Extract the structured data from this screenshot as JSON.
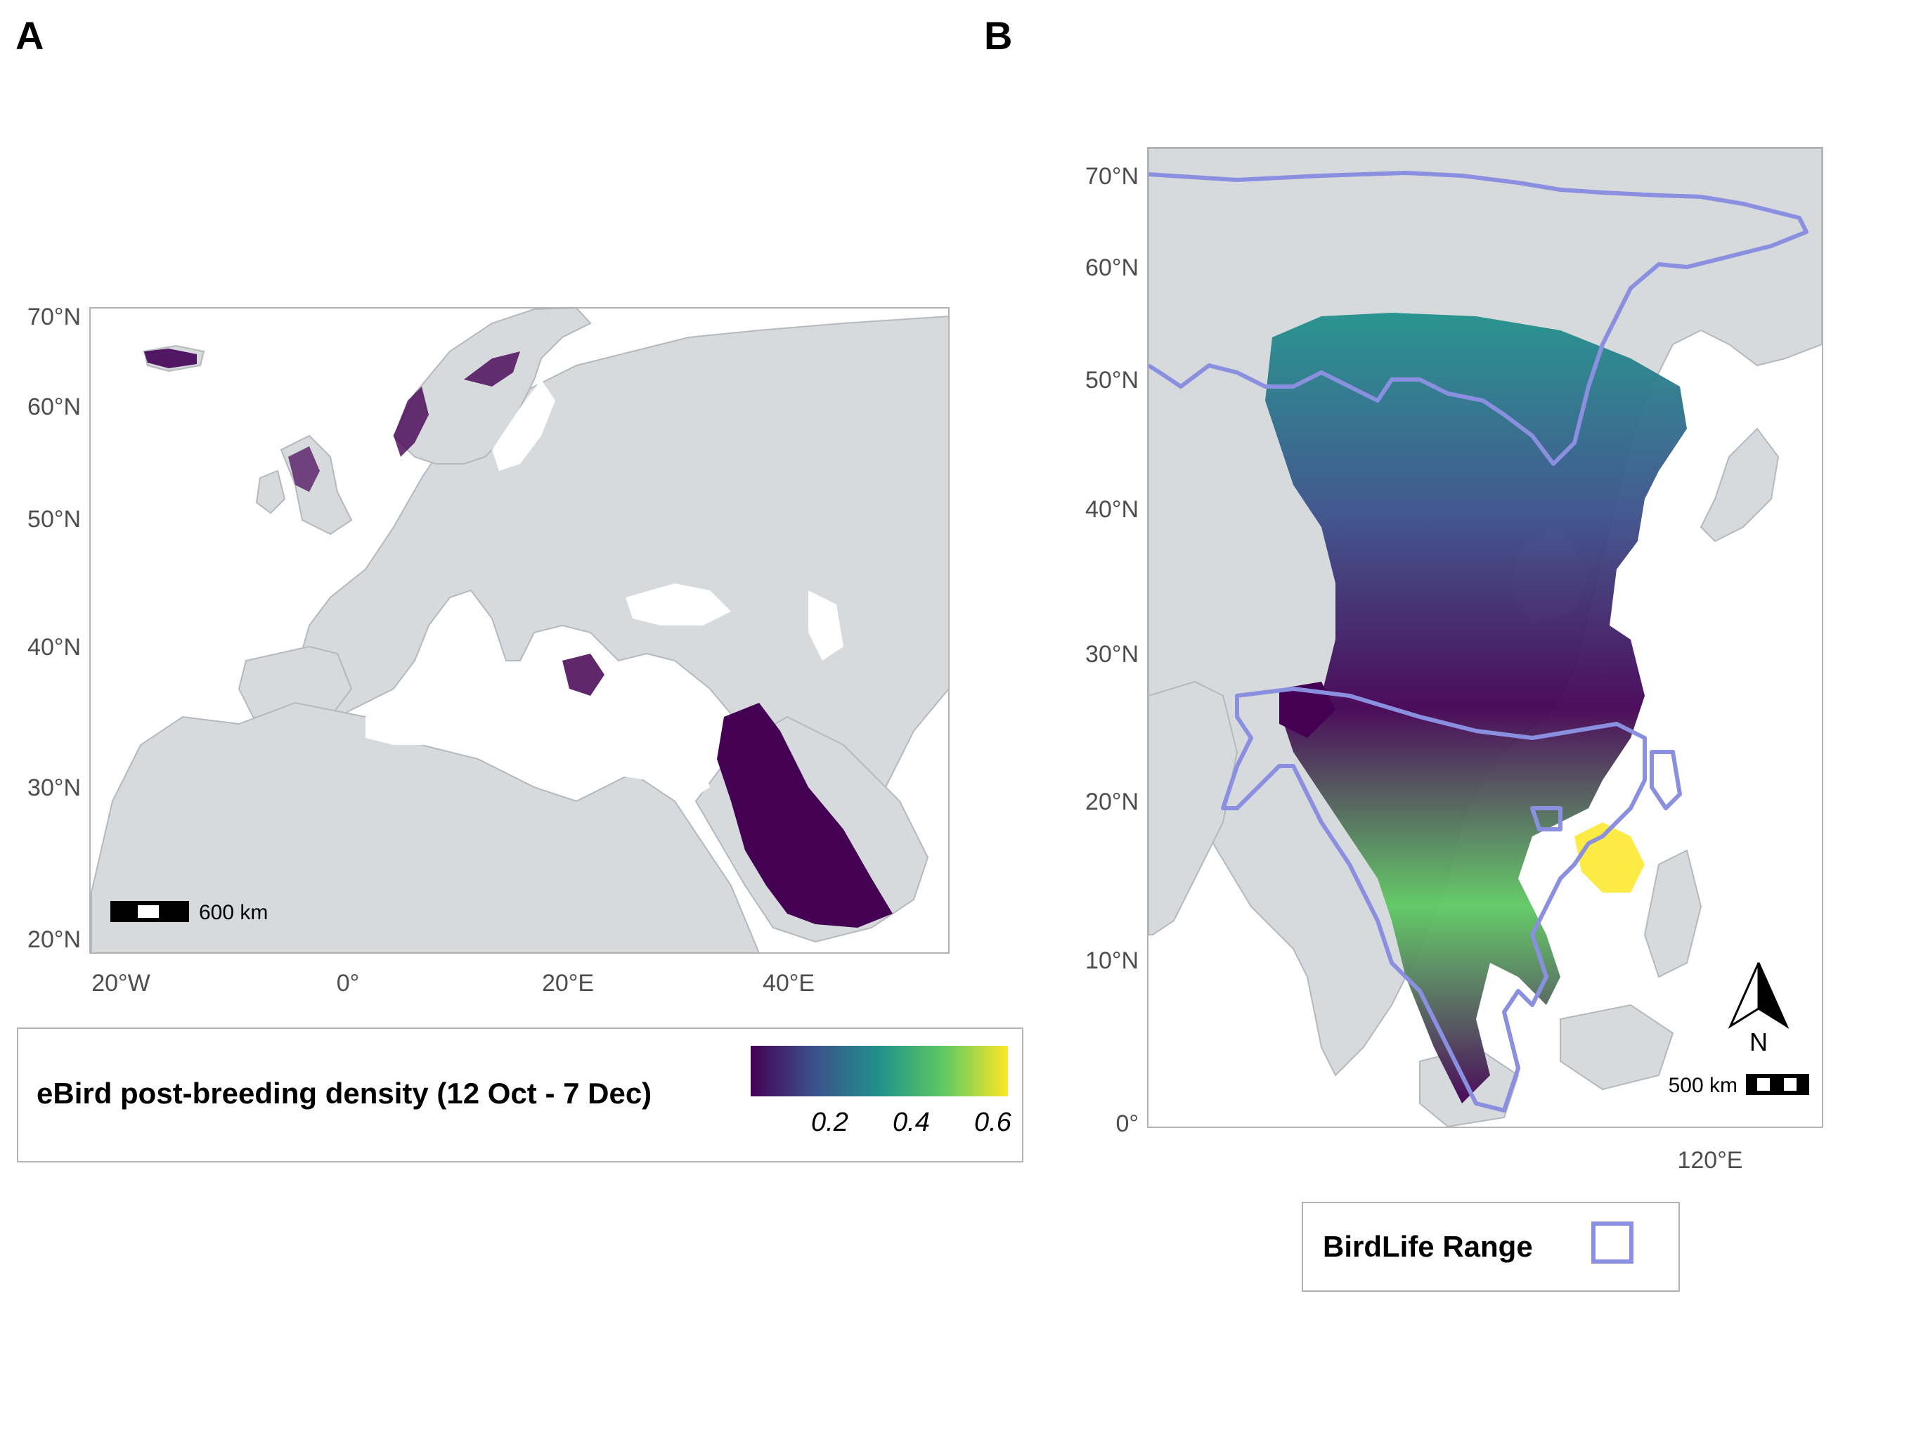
{
  "panels": {
    "a": {
      "letter": "A",
      "lat_labels": [
        "70°N",
        "60°N",
        "50°N",
        "40°N",
        "30°N",
        "20°N"
      ],
      "lon_labels": [
        "20°W",
        "0°",
        "20°E",
        "40°E"
      ],
      "scalebar": "600 km"
    },
    "b": {
      "letter": "B",
      "lat_labels": [
        "70°N",
        "60°N",
        "50°N",
        "40°N",
        "30°N",
        "20°N",
        "10°N",
        "0°"
      ],
      "lon_labels": [
        "120°E"
      ],
      "scalebar": "500 km",
      "north_arrow": "N"
    }
  },
  "legend_density": {
    "title": "eBird post-breeding density (12 Oct - 7 Dec)",
    "ticks": [
      "0.2",
      "0.4",
      "0.6"
    ],
    "colors": [
      "#440154",
      "#3b528b",
      "#21918c",
      "#5ec962",
      "#fde725"
    ]
  },
  "legend_range": {
    "title": "BirdLife Range",
    "color": "#8a8fe0"
  },
  "colors": {
    "land": "#d7dadd",
    "border": "#b5b9bd",
    "range_outline": "#8a8fe0"
  }
}
